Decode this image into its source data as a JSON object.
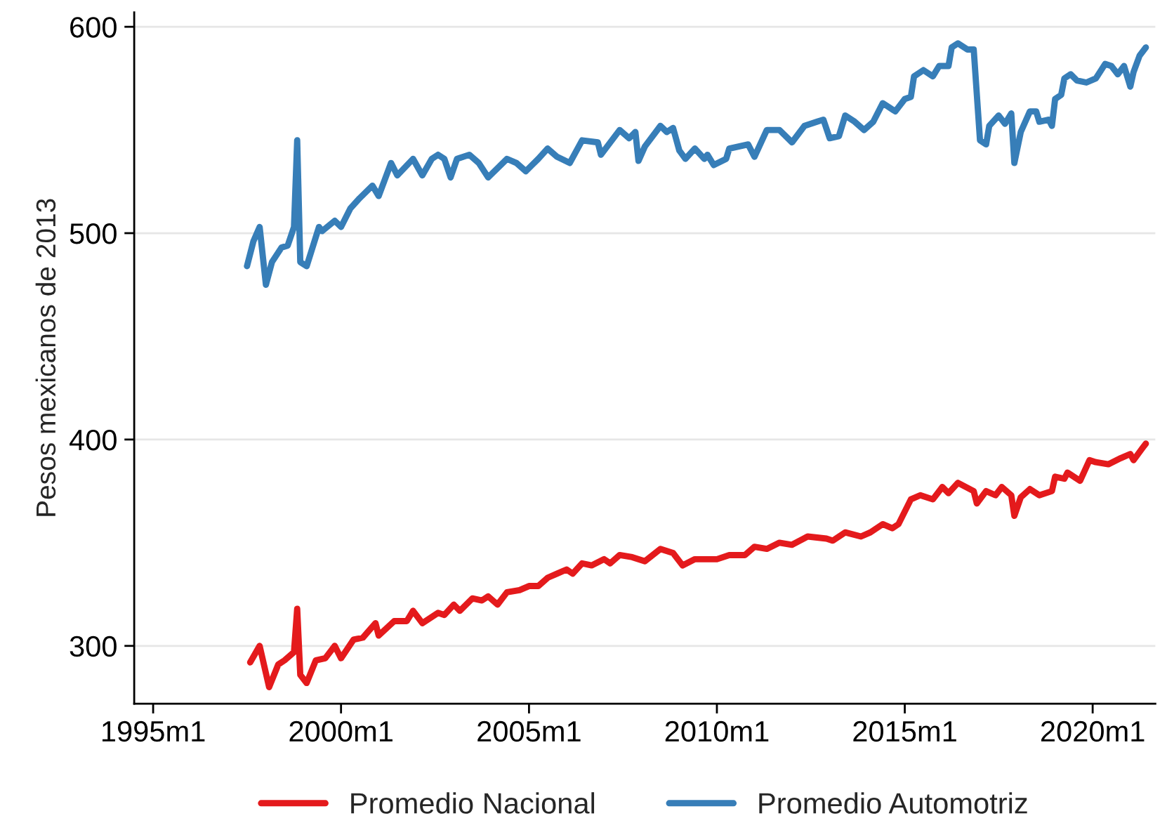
{
  "chart_data": {
    "type": "line",
    "ylabel": "Pesos mexicanos de 2013",
    "xlim": [
      "1994-07",
      "2021-09"
    ],
    "ylim": [
      272,
      607
    ],
    "xticks": [
      {
        "value": "1995-01",
        "label": "1995m1"
      },
      {
        "value": "2000-01",
        "label": "2000m1"
      },
      {
        "value": "2005-01",
        "label": "2005m1"
      },
      {
        "value": "2010-01",
        "label": "2010m1"
      },
      {
        "value": "2015-01",
        "label": "2015m1"
      },
      {
        "value": "2020-01",
        "label": "2020m1"
      }
    ],
    "yticks": [
      300,
      400,
      500,
      600
    ],
    "grid": "y",
    "legend": "bottom",
    "marker": "none",
    "line_style": "solid",
    "series": [
      {
        "name": "Promedio Nacional",
        "color": "#e41a1c",
        "x": [
          "1997-08",
          "1997-11",
          "1998-02",
          "1998-05",
          "1998-07",
          "1998-10",
          "1998-11",
          "1998-12",
          "1999-02",
          "1999-05",
          "1999-08",
          "1999-11",
          "2000-01",
          "2000-05",
          "2000-08",
          "2000-12",
          "2001-01",
          "2001-06",
          "2001-10",
          "2001-12",
          "2002-03",
          "2002-08",
          "2002-10",
          "2003-01",
          "2003-03",
          "2003-07",
          "2003-10",
          "2003-12",
          "2004-03",
          "2004-06",
          "2004-10",
          "2005-01",
          "2005-04",
          "2005-07",
          "2005-10",
          "2006-01",
          "2006-03",
          "2006-06",
          "2006-09",
          "2007-01",
          "2007-03",
          "2007-06",
          "2007-10",
          "2008-02",
          "2008-07",
          "2008-11",
          "2009-02",
          "2009-06",
          "2010-01",
          "2010-05",
          "2010-10",
          "2011-01",
          "2011-05",
          "2011-09",
          "2012-01",
          "2012-06",
          "2012-12",
          "2013-02",
          "2013-06",
          "2013-11",
          "2014-02",
          "2014-06",
          "2014-09",
          "2014-11",
          "2015-03",
          "2015-06",
          "2015-10",
          "2016-01",
          "2016-03",
          "2016-06",
          "2016-11",
          "2016-12",
          "2017-03",
          "2017-06",
          "2017-08",
          "2017-11",
          "2017-12",
          "2018-02",
          "2018-05",
          "2018-08",
          "2018-12",
          "2019-01",
          "2019-04",
          "2019-05",
          "2019-09",
          "2019-12",
          "2020-02",
          "2020-06",
          "2020-10",
          "2021-01",
          "2021-02",
          "2021-05",
          "2021-06"
        ],
        "values": [
          292,
          300,
          280,
          291,
          293,
          297,
          318,
          286,
          282,
          293,
          294,
          300,
          294,
          303,
          304,
          311,
          305,
          312,
          312,
          317,
          311,
          316,
          315,
          320,
          317,
          323,
          322,
          324,
          320,
          326,
          327,
          329,
          329,
          333,
          335,
          337,
          335,
          340,
          339,
          342,
          340,
          344,
          343,
          341,
          347,
          345,
          339,
          342,
          342,
          344,
          344,
          348,
          347,
          350,
          349,
          353,
          352,
          351,
          355,
          353,
          355,
          359,
          357,
          359,
          371,
          373,
          371,
          377,
          374,
          379,
          375,
          369,
          375,
          373,
          377,
          373,
          363,
          372,
          376,
          373,
          375,
          382,
          381,
          384,
          380,
          390,
          389,
          388,
          391,
          393,
          390,
          396,
          398
        ]
      },
      {
        "name": "Promedio Automotriz",
        "color": "#377eb8",
        "x": [
          "1997-07",
          "1997-09",
          "1997-11",
          "1998-01",
          "1998-03",
          "1998-06",
          "1998-08",
          "1998-10",
          "1998-11",
          "1998-12",
          "1999-02",
          "1999-06",
          "1999-07",
          "1999-11",
          "2000-01",
          "2000-04",
          "2000-07",
          "2000-11",
          "2001-01",
          "2001-05",
          "2001-07",
          "2001-12",
          "2002-03",
          "2002-06",
          "2002-08",
          "2002-10",
          "2002-12",
          "2003-02",
          "2003-06",
          "2003-09",
          "2003-12",
          "2004-06",
          "2004-09",
          "2004-12",
          "2005-04",
          "2005-07",
          "2005-10",
          "2006-02",
          "2006-06",
          "2006-11",
          "2006-12",
          "2007-06",
          "2007-09",
          "2007-11",
          "2007-12",
          "2008-02",
          "2008-07",
          "2008-09",
          "2008-11",
          "2009-01",
          "2009-03",
          "2009-06",
          "2009-09",
          "2009-10",
          "2009-12",
          "2010-04",
          "2010-05",
          "2010-11",
          "2011-01",
          "2011-05",
          "2011-09",
          "2012-01",
          "2012-05",
          "2012-09",
          "2012-11",
          "2013-01",
          "2013-04",
          "2013-06",
          "2013-09",
          "2013-12",
          "2014-03",
          "2014-06",
          "2014-10",
          "2015-01",
          "2015-03",
          "2015-04",
          "2015-07",
          "2015-10",
          "2015-12",
          "2016-03",
          "2016-04",
          "2016-06",
          "2016-09",
          "2016-11",
          "2017-01",
          "2017-03",
          "2017-04",
          "2017-07",
          "2017-09",
          "2017-11",
          "2017-12",
          "2018-02",
          "2018-05",
          "2018-07",
          "2018-08",
          "2018-11",
          "2018-12",
          "2019-01",
          "2019-03",
          "2019-04",
          "2019-06",
          "2019-08",
          "2019-11",
          "2020-02",
          "2020-05",
          "2020-07",
          "2020-09",
          "2020-11",
          "2021-01",
          "2021-02",
          "2021-04",
          "2021-06"
        ],
        "values": [
          484,
          496,
          503,
          475,
          486,
          493,
          494,
          503,
          545,
          486,
          484,
          503,
          501,
          506,
          503,
          512,
          517,
          523,
          518,
          534,
          528,
          536,
          528,
          536,
          538,
          536,
          527,
          536,
          538,
          534,
          527,
          536,
          534,
          530,
          536,
          541,
          537,
          534,
          545,
          544,
          538,
          550,
          546,
          549,
          535,
          542,
          552,
          549,
          551,
          540,
          536,
          541,
          536,
          538,
          533,
          536,
          541,
          543,
          537,
          550,
          550,
          544,
          552,
          554,
          555,
          546,
          547,
          557,
          554,
          550,
          554,
          563,
          559,
          565,
          566,
          576,
          579,
          576,
          581,
          581,
          590,
          592,
          589,
          589,
          545,
          543,
          552,
          557,
          553,
          558,
          534,
          549,
          559,
          559,
          554,
          555,
          552,
          565,
          567,
          575,
          577,
          574,
          573,
          575,
          582,
          581,
          577,
          581,
          571,
          578,
          586,
          590
        ]
      }
    ]
  }
}
